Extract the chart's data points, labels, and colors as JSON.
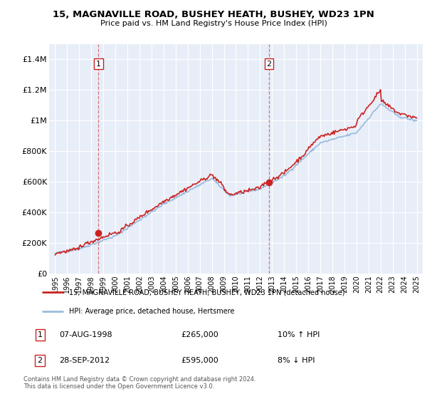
{
  "title": "15, MAGNAVILLE ROAD, BUSHEY HEATH, BUSHEY, WD23 1PN",
  "subtitle": "Price paid vs. HM Land Registry's House Price Index (HPI)",
  "ylim": [
    0,
    1500000
  ],
  "xlim": [
    1994.5,
    2025.5
  ],
  "yticks": [
    0,
    200000,
    400000,
    600000,
    800000,
    1000000,
    1200000,
    1400000
  ],
  "ytick_labels": [
    "£0",
    "£200K",
    "£400K",
    "£600K",
    "£800K",
    "£1M",
    "£1.2M",
    "£1.4M"
  ],
  "xticks": [
    1995,
    1996,
    1997,
    1998,
    1999,
    2000,
    2001,
    2002,
    2003,
    2004,
    2005,
    2006,
    2007,
    2008,
    2009,
    2010,
    2011,
    2012,
    2013,
    2014,
    2015,
    2016,
    2017,
    2018,
    2019,
    2020,
    2021,
    2022,
    2023,
    2024,
    2025
  ],
  "sale1_x": 1998.6,
  "sale1_y": 265000,
  "sale2_x": 2012.75,
  "sale2_y": 595000,
  "hpi_color": "#99bbdd",
  "price_color": "#cc2222",
  "vline_color": "#cc2222",
  "background_color": "#e8eef8",
  "legend_label_price": "15, MAGNAVILLE ROAD, BUSHEY HEATH, BUSHEY, WD23 1PN (detached house)",
  "legend_label_hpi": "HPI: Average price, detached house, Hertsmere",
  "note1_label": "1",
  "note1_date": "07-AUG-1998",
  "note1_price": "£265,000",
  "note1_hpi": "10% ↑ HPI",
  "note2_label": "2",
  "note2_date": "28-SEP-2012",
  "note2_price": "£595,000",
  "note2_hpi": "8% ↓ HPI",
  "copyright": "Contains HM Land Registry data © Crown copyright and database right 2024.\nThis data is licensed under the Open Government Licence v3.0."
}
